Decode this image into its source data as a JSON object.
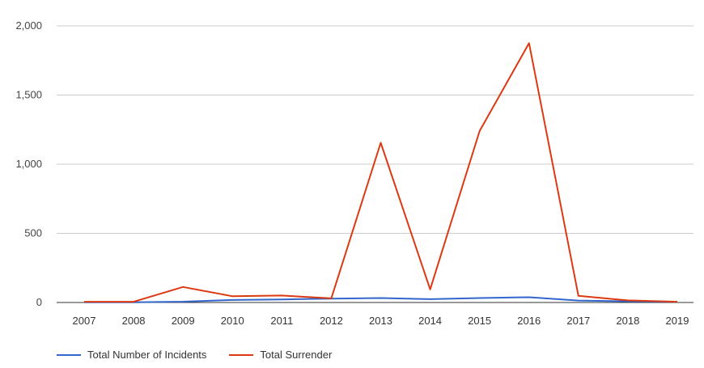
{
  "chart_data": {
    "type": "line",
    "x": [
      "2007",
      "2008",
      "2009",
      "2010",
      "2011",
      "2012",
      "2013",
      "2014",
      "2015",
      "2016",
      "2017",
      "2018",
      "2019"
    ],
    "yticks": [
      "0",
      "500",
      "1,000",
      "1,500",
      "2,000"
    ],
    "ylim": [
      0,
      2000
    ],
    "grid": true,
    "legend_position": "bottom-left",
    "series": [
      {
        "name": "Total Number of Incidents",
        "color": "#3366cc",
        "values": [
          2,
          2,
          6,
          18,
          22,
          28,
          32,
          24,
          32,
          38,
          14,
          8,
          5
        ]
      },
      {
        "name": "Total Surrender",
        "color": "#dc3912",
        "values": [
          5,
          5,
          112,
          45,
          50,
          30,
          1155,
          95,
          1240,
          1875,
          48,
          15,
          5
        ]
      }
    ]
  }
}
